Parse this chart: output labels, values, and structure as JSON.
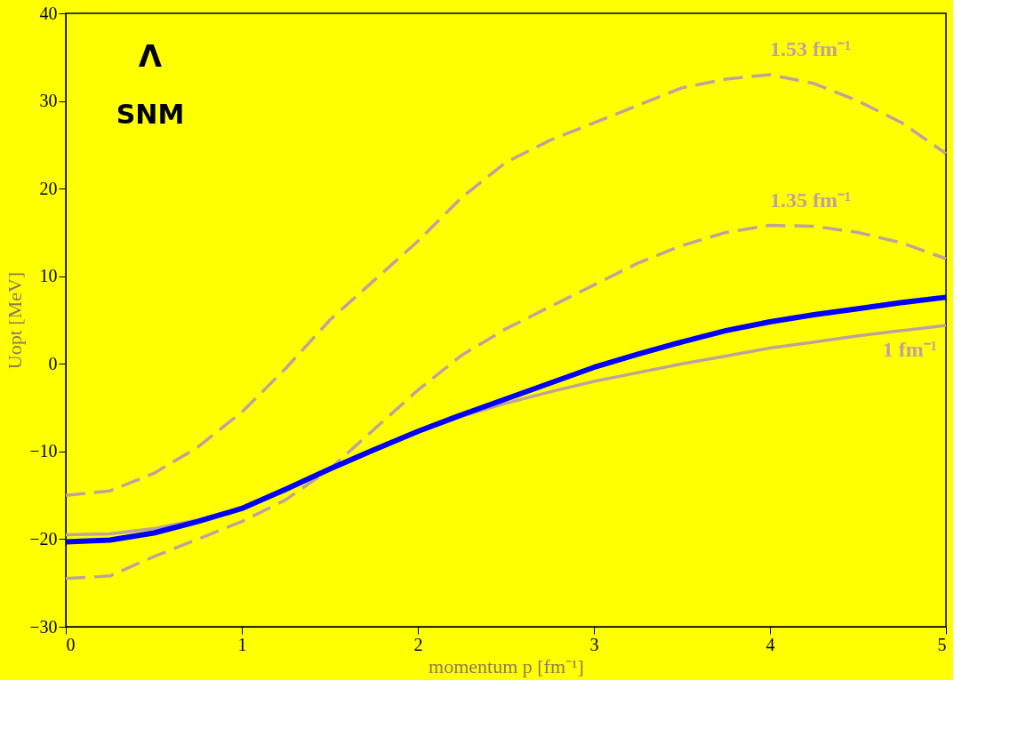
{
  "chart_data": {
    "type": "line",
    "xlabel": "momentum p [fm⁻¹]",
    "ylabel": "Uopt [MeV]",
    "x": [
      0,
      0.25,
      0.5,
      0.75,
      1,
      1.25,
      1.5,
      1.75,
      2,
      2.25,
      2.5,
      2.75,
      3,
      3.25,
      3.5,
      3.75,
      4,
      4.25,
      4.5,
      4.75,
      5
    ],
    "series": [
      {
        "name": "1.53 fm⁻¹",
        "color": "#bfa39b",
        "line_style": "dashed",
        "values": [
          -15,
          -14.5,
          -12.5,
          -9.5,
          -5.5,
          -0.5,
          5,
          9.5,
          14,
          19,
          23,
          25.5,
          27.5,
          29.5,
          31.5,
          32.5,
          33,
          32,
          30,
          27.5,
          24
        ]
      },
      {
        "name": "1.35 fm⁻¹",
        "color": "#bfa39b",
        "line_style": "dashed",
        "values": [
          -24.5,
          -24.2,
          -22,
          -20,
          -18,
          -15.5,
          -12,
          -7.5,
          -3,
          1,
          4,
          6.5,
          9,
          11.5,
          13.5,
          15,
          15.8,
          15.7,
          15,
          13.8,
          12
        ]
      },
      {
        "name": "1 fm⁻¹",
        "color": "#bfa39b",
        "line_style": "solid",
        "values": [
          -19.5,
          -19.4,
          -18.8,
          -17.8,
          -16.5,
          -14.5,
          -12,
          -9.8,
          -7.8,
          -6,
          -4.5,
          -3.2,
          -2,
          -1,
          0,
          0.9,
          1.8,
          2.5,
          3.2,
          3.8,
          4.4
        ]
      },
      {
        "color": "#0000ff",
        "line_style": "solid",
        "values": [
          -20.3,
          -20.1,
          -19.3,
          -18,
          -16.5,
          -14.3,
          -12,
          -9.8,
          -7.7,
          -5.8,
          -4,
          -2.2,
          -0.4,
          1.1,
          2.5,
          3.8,
          4.8,
          5.6,
          6.3,
          7,
          7.6
        ]
      }
    ],
    "xlim": [
      0,
      5
    ],
    "xticks": [
      0,
      1,
      2,
      3,
      4,
      5
    ],
    "ylim": [
      -30,
      40
    ],
    "yticks": [
      -30,
      -20,
      -10,
      0,
      10,
      20,
      30,
      40
    ],
    "grid": false,
    "marker": "none",
    "annotations": [
      "Λ",
      "SNM"
    ]
  }
}
